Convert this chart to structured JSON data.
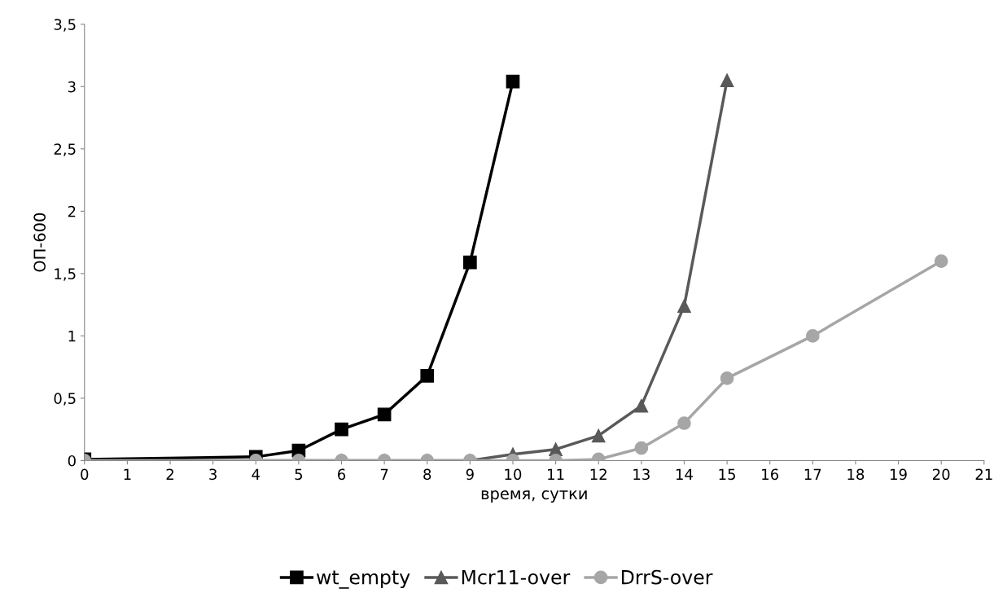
{
  "chart_data": {
    "type": "line",
    "xlabel": "время, сутки",
    "ylabel": "ОП-600",
    "xlim": [
      0,
      21
    ],
    "xticks": [
      0,
      1,
      2,
      3,
      4,
      5,
      6,
      7,
      8,
      9,
      10,
      11,
      12,
      13,
      14,
      15,
      16,
      17,
      18,
      19,
      20,
      21
    ],
    "ylim": [
      0,
      3.5
    ],
    "yticks": [
      0,
      {
        "value": 0.5,
        "label": "0,5"
      },
      1,
      {
        "value": 1.5,
        "label": "1,5"
      },
      2,
      {
        "value": 2.5,
        "label": "2,5"
      },
      3,
      {
        "value": 3.5,
        "label": "3,5"
      }
    ],
    "grid": false,
    "legend": "bottom",
    "line_style": "solid",
    "series": [
      {
        "name": "wt_empty",
        "color": "#000000",
        "marker": "square",
        "x": [
          0,
          4,
          5,
          6,
          7,
          8,
          9,
          10
        ],
        "values": [
          0.01,
          0.03,
          0.08,
          0.25,
          0.37,
          0.68,
          1.59,
          3.04
        ]
      },
      {
        "name": "Mcr11-over",
        "color": "#595959",
        "marker": "triangle",
        "x": [
          0,
          4,
          5,
          6,
          7,
          8,
          9,
          10,
          11,
          12,
          13,
          14,
          15
        ],
        "values": [
          0,
          0,
          0,
          0,
          0,
          0,
          0,
          0.05,
          0.09,
          0.2,
          0.44,
          1.24,
          3.05
        ]
      },
      {
        "name": "DrrS-over",
        "color": "#a6a6a6",
        "marker": "circle",
        "x": [
          0,
          4,
          5,
          6,
          7,
          8,
          9,
          10,
          11,
          12,
          13,
          14,
          15,
          17,
          20
        ],
        "values": [
          0,
          0,
          0,
          0,
          0,
          0,
          0,
          0,
          0,
          0.01,
          0.1,
          0.3,
          0.66,
          1.0,
          1.6
        ]
      }
    ]
  }
}
